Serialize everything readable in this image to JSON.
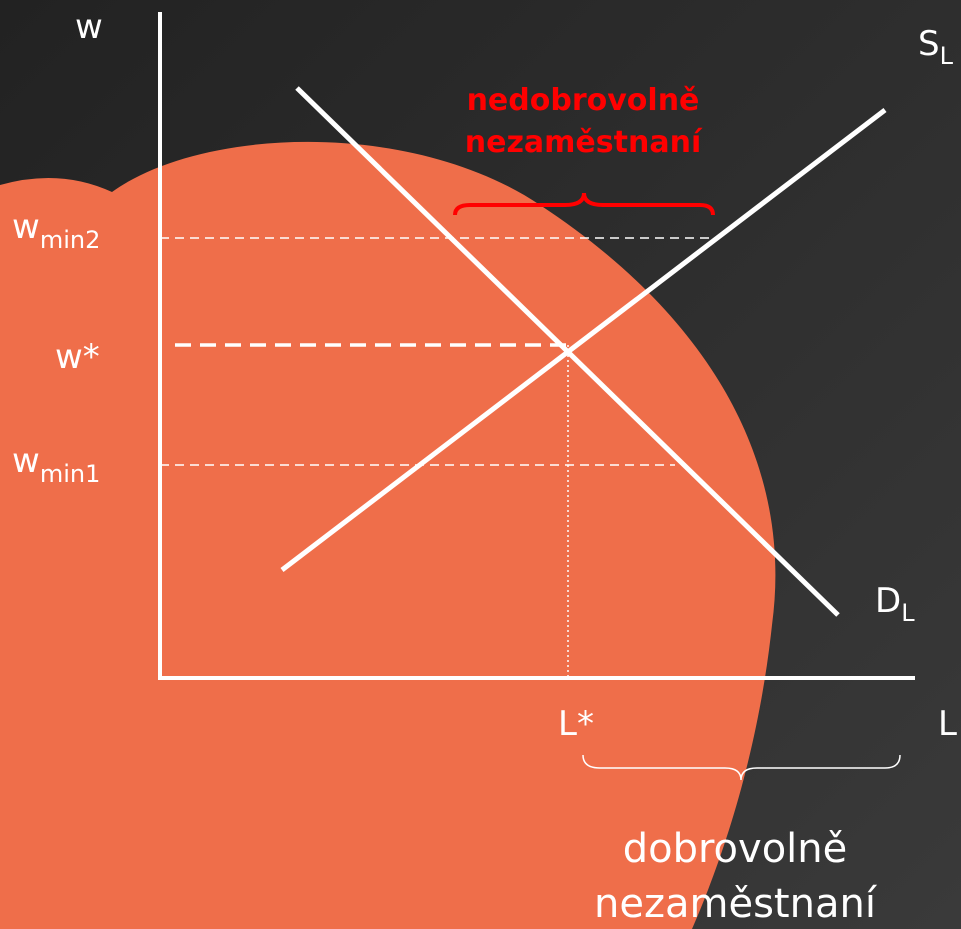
{
  "axes": {
    "y_label": "w",
    "x_label": "L"
  },
  "curves": [
    {
      "name": "S",
      "subscript": "L"
    },
    {
      "name": "D",
      "subscript": "L"
    }
  ],
  "levels": [
    {
      "name": "w",
      "subscript": "min2"
    },
    {
      "name": "w*"
    },
    {
      "name": "w",
      "subscript": "min1"
    }
  ],
  "equilibrium_quantity": "L*",
  "annotations": {
    "involuntary": [
      "nedobrovolně",
      "nezaměstnaní"
    ],
    "voluntary": [
      "dobrovolně",
      "nezaměstnaní"
    ]
  }
}
